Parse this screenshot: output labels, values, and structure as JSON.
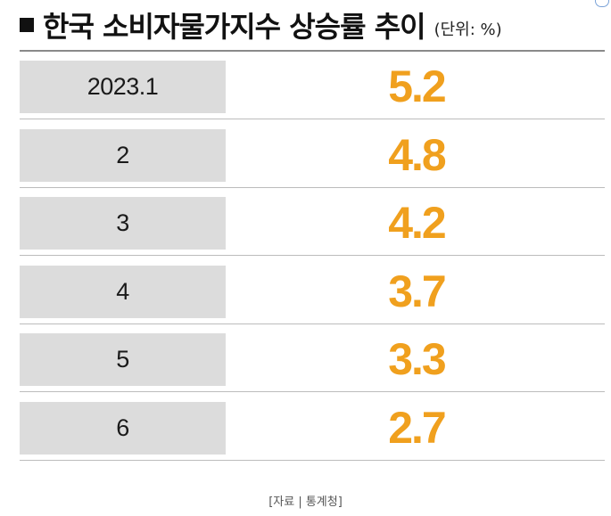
{
  "chart_data": {
    "type": "table",
    "title": "한국 소비자물가지수 상승률 추이",
    "unit": "(단위: %)",
    "categories": [
      "2023.1",
      "2",
      "3",
      "4",
      "5",
      "6"
    ],
    "values": [
      "5.2",
      "4.8",
      "4.2",
      "3.7",
      "3.3",
      "2.7"
    ],
    "value_color": "#f0a01e"
  },
  "source": "[자료 | 통계청]"
}
